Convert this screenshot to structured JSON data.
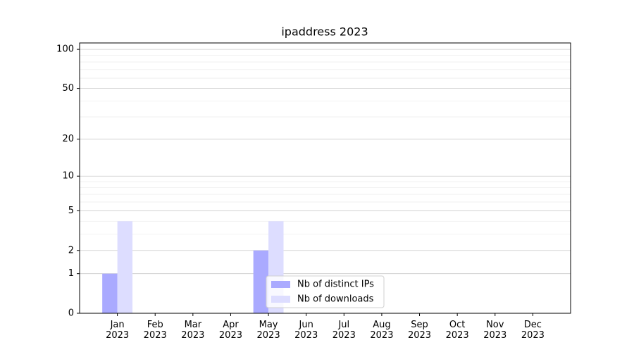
{
  "chart_data": {
    "type": "bar",
    "title": "ipaddress 2023",
    "categories": [
      "Jan\n2023",
      "Feb\n2023",
      "Mar\n2023",
      "Apr\n2023",
      "May\n2023",
      "Jun\n2023",
      "Jul\n2023",
      "Aug\n2023",
      "Sep\n2023",
      "Oct\n2023",
      "Nov\n2023",
      "Dec\n2023"
    ],
    "series": [
      {
        "name": "Nb of distinct IPs",
        "color": "#aaaaff",
        "values": [
          1,
          0,
          0,
          0,
          2,
          0,
          0,
          0,
          0,
          0,
          0,
          0
        ]
      },
      {
        "name": "Nb of downloads",
        "color": "#ddddff",
        "values": [
          4,
          0,
          0,
          0,
          4,
          0,
          0,
          0,
          0,
          0,
          0,
          0
        ]
      }
    ],
    "yscale": "log1p",
    "ylim": [
      0,
      112
    ],
    "yticks": [
      0,
      1,
      2,
      5,
      10,
      20,
      50,
      100
    ],
    "minor_yticks": [
      3,
      4,
      6,
      7,
      8,
      9,
      30,
      40,
      60,
      70,
      80,
      90
    ],
    "grid": true,
    "legend": "lower center"
  }
}
